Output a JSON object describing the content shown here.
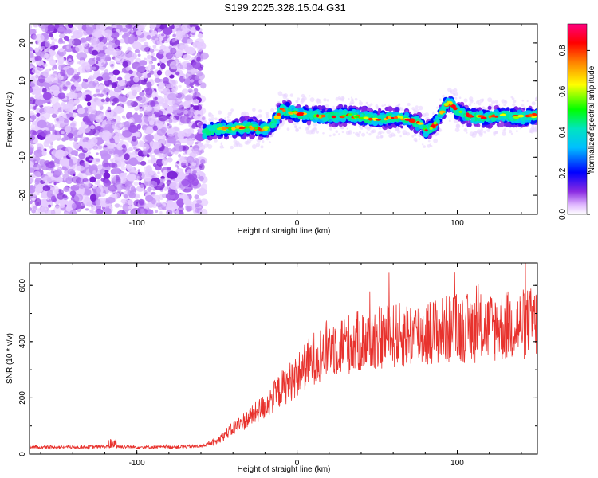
{
  "title": "S199.2025.328.15.04.G31",
  "chart_data": [
    {
      "type": "heatmap",
      "title": "S199.2025.328.15.04.G31",
      "xlabel": "Height of straight line (km)",
      "ylabel": "Frequency (Hz)",
      "xlim": [
        -167,
        150
      ],
      "ylim": [
        -25,
        25
      ],
      "xticks": [
        -100,
        0,
        100
      ],
      "yticks": [
        -20,
        -10,
        0,
        10,
        20
      ],
      "colorbar": {
        "label": "Normalized spectral amplitude",
        "range": [
          0,
          0.93
        ],
        "ticks": [
          0.0,
          0.2,
          0.4,
          0.6,
          0.8
        ]
      },
      "noise_region_x": [
        -167,
        -58
      ],
      "signal_trace": {
        "x": [
          -58,
          -50,
          -40,
          -30,
          -22,
          -15,
          -12,
          -10,
          0,
          10,
          20,
          30,
          40,
          50,
          60,
          70,
          75,
          78,
          80,
          85,
          88,
          92,
          95,
          100,
          110,
          120,
          130,
          140,
          150
        ],
        "freq": [
          -3.5,
          -2.5,
          -2.5,
          -2.0,
          -3.0,
          -1.5,
          0.5,
          2.5,
          1.5,
          1.0,
          0.5,
          1.0,
          0.5,
          0.0,
          0.5,
          0.0,
          -1.0,
          -1.5,
          -3.0,
          -2.0,
          0.0,
          3.0,
          4.5,
          2.0,
          0.5,
          0.5,
          1.0,
          0.5,
          1.0
        ]
      }
    },
    {
      "type": "line",
      "xlabel": "Height of straight line (km)",
      "ylabel": "SNR (10 * v/v)",
      "xlim": [
        -167,
        150
      ],
      "ylim": [
        0,
        680
      ],
      "xticks": [
        -100,
        0,
        100
      ],
      "yticks": [
        0,
        200,
        400,
        600
      ],
      "series": [
        {
          "name": "SNR",
          "color": "#e8322d",
          "x": [
            -167,
            -150,
            -130,
            -115,
            -100,
            -80,
            -60,
            -50,
            -45,
            -40,
            -30,
            -20,
            -10,
            0,
            10,
            20,
            30,
            40,
            50,
            60,
            70,
            80,
            90,
            100,
            110,
            120,
            130,
            140,
            150
          ],
          "values": [
            25,
            25,
            25,
            28,
            25,
            25,
            28,
            45,
            70,
            90,
            130,
            170,
            230,
            280,
            340,
            380,
            390,
            400,
            410,
            420,
            425,
            430,
            440,
            450,
            445,
            450,
            455,
            460,
            470
          ]
        }
      ]
    }
  ]
}
